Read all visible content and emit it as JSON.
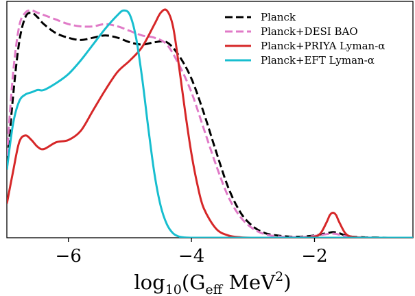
{
  "chart_data": {
    "type": "line",
    "title": "",
    "xlabel": "log10(Geff MeV2)",
    "xlabel_parts": {
      "base": "log",
      "base_sub": "10",
      "open": "(G",
      "g_sub": "eff",
      "unit": " MeV",
      "unit_sup": "2",
      "close": ")"
    },
    "ylabel": "",
    "xlim": [
      -7.0,
      -0.4
    ],
    "ylim": [
      0.0,
      1.04
    ],
    "x_ticks": [
      -6,
      -4,
      -2
    ],
    "x_tick_labels": [
      "−6",
      "−4",
      "−2"
    ],
    "grid": false,
    "legend_position": "top-right",
    "series": [
      {
        "name": "Planck",
        "color": "#000000",
        "style": "dashed",
        "x": [
          -7.0,
          -6.9,
          -6.8,
          -6.7,
          -6.6,
          -6.5,
          -6.4,
          -6.2,
          -6.0,
          -5.8,
          -5.6,
          -5.4,
          -5.2,
          -5.0,
          -4.8,
          -4.6,
          -4.4,
          -4.2,
          -4.0,
          -3.8,
          -3.6,
          -3.4,
          -3.2,
          -3.0,
          -2.8,
          -2.6,
          -2.4,
          -2.2,
          -2.0,
          -1.9,
          -1.8,
          -1.7,
          -1.6,
          -1.5,
          -1.4,
          -1.2,
          -1.0,
          -0.8,
          -0.6,
          -0.4
        ],
        "y": [
          0.3,
          0.62,
          0.86,
          0.97,
          0.99,
          0.97,
          0.94,
          0.9,
          0.88,
          0.87,
          0.88,
          0.89,
          0.88,
          0.86,
          0.85,
          0.86,
          0.86,
          0.8,
          0.7,
          0.55,
          0.38,
          0.22,
          0.11,
          0.05,
          0.02,
          0.01,
          0.005,
          0.005,
          0.01,
          0.015,
          0.02,
          0.025,
          0.02,
          0.01,
          0.005,
          0.002,
          0.001,
          0.0,
          0.0,
          0.0
        ]
      },
      {
        "name": "Planck+DESI BAO",
        "color": "#e07ac7",
        "style": "dashed",
        "x": [
          -7.0,
          -6.9,
          -6.8,
          -6.7,
          -6.6,
          -6.5,
          -6.4,
          -6.2,
          -6.0,
          -5.8,
          -5.6,
          -5.4,
          -5.2,
          -5.0,
          -4.8,
          -4.6,
          -4.4,
          -4.2,
          -4.0,
          -3.8,
          -3.6,
          -3.4,
          -3.2,
          -3.0,
          -2.8,
          -2.6,
          -2.4,
          -2.2,
          -2.0,
          -1.9,
          -1.8,
          -1.7,
          -1.6,
          -1.5,
          -1.4,
          -1.2,
          -1.0,
          -0.8,
          -0.6,
          -0.4
        ],
        "y": [
          0.36,
          0.72,
          0.93,
          0.99,
          1.0,
          0.99,
          0.98,
          0.96,
          0.94,
          0.93,
          0.93,
          0.94,
          0.93,
          0.91,
          0.89,
          0.88,
          0.85,
          0.76,
          0.64,
          0.48,
          0.32,
          0.18,
          0.09,
          0.04,
          0.015,
          0.006,
          0.003,
          0.003,
          0.008,
          0.012,
          0.016,
          0.018,
          0.014,
          0.007,
          0.003,
          0.001,
          0.0,
          0.0,
          0.0,
          0.0
        ]
      },
      {
        "name": "Planck+PRIYA Lyman-α",
        "color": "#d62728",
        "style": "solid",
        "x": [
          -7.0,
          -6.9,
          -6.8,
          -6.7,
          -6.6,
          -6.5,
          -6.4,
          -6.2,
          -6.0,
          -5.8,
          -5.6,
          -5.4,
          -5.2,
          -5.0,
          -4.8,
          -4.6,
          -4.5,
          -4.4,
          -4.3,
          -4.2,
          -4.1,
          -4.0,
          -3.9,
          -3.8,
          -3.6,
          -3.4,
          -3.2,
          -3.0,
          -2.8,
          -2.6,
          -2.4,
          -2.2,
          -2.0,
          -1.9,
          -1.8,
          -1.75,
          -1.7,
          -1.65,
          -1.6,
          -1.5,
          -1.4,
          -1.2,
          -1.0,
          -0.8,
          -0.6,
          -0.4
        ],
        "y": [
          0.15,
          0.29,
          0.42,
          0.45,
          0.43,
          0.4,
          0.39,
          0.42,
          0.43,
          0.47,
          0.56,
          0.65,
          0.73,
          0.78,
          0.84,
          0.94,
          0.99,
          1.0,
          0.93,
          0.75,
          0.55,
          0.37,
          0.23,
          0.13,
          0.04,
          0.01,
          0.002,
          0.0,
          0.0,
          0.0,
          0.0,
          0.0,
          0.005,
          0.02,
          0.07,
          0.1,
          0.11,
          0.1,
          0.07,
          0.02,
          0.005,
          0.0,
          0.0,
          0.0,
          0.0,
          0.0
        ]
      },
      {
        "name": "Planck+EFT Lyman-α",
        "color": "#17becf",
        "style": "solid",
        "x": [
          -7.0,
          -6.9,
          -6.8,
          -6.7,
          -6.6,
          -6.5,
          -6.4,
          -6.2,
          -6.0,
          -5.8,
          -5.6,
          -5.4,
          -5.2,
          -5.1,
          -5.0,
          -4.9,
          -4.8,
          -4.7,
          -4.6,
          -4.5,
          -4.4,
          -4.3,
          -4.2,
          -4.1,
          -4.0,
          -3.9,
          -3.8,
          -3.6,
          -3.4,
          -3.2,
          -3.0,
          -2.8,
          -2.6,
          -2.4,
          -2.2,
          -2.0,
          -1.8,
          -1.6,
          -1.4,
          -1.2,
          -1.0,
          -0.8,
          -0.6,
          -0.4
        ],
        "y": [
          0.3,
          0.5,
          0.6,
          0.63,
          0.64,
          0.65,
          0.65,
          0.68,
          0.72,
          0.78,
          0.85,
          0.92,
          0.98,
          1.0,
          0.98,
          0.88,
          0.7,
          0.48,
          0.28,
          0.14,
          0.06,
          0.02,
          0.005,
          0.001,
          0.0,
          0.0,
          0.0,
          0.0,
          0.0,
          0.0,
          0.0,
          0.0,
          0.0,
          0.0,
          0.0,
          0.0,
          0.0,
          0.0,
          0.0,
          0.0,
          0.0,
          0.0,
          0.0,
          0.0
        ]
      }
    ]
  }
}
